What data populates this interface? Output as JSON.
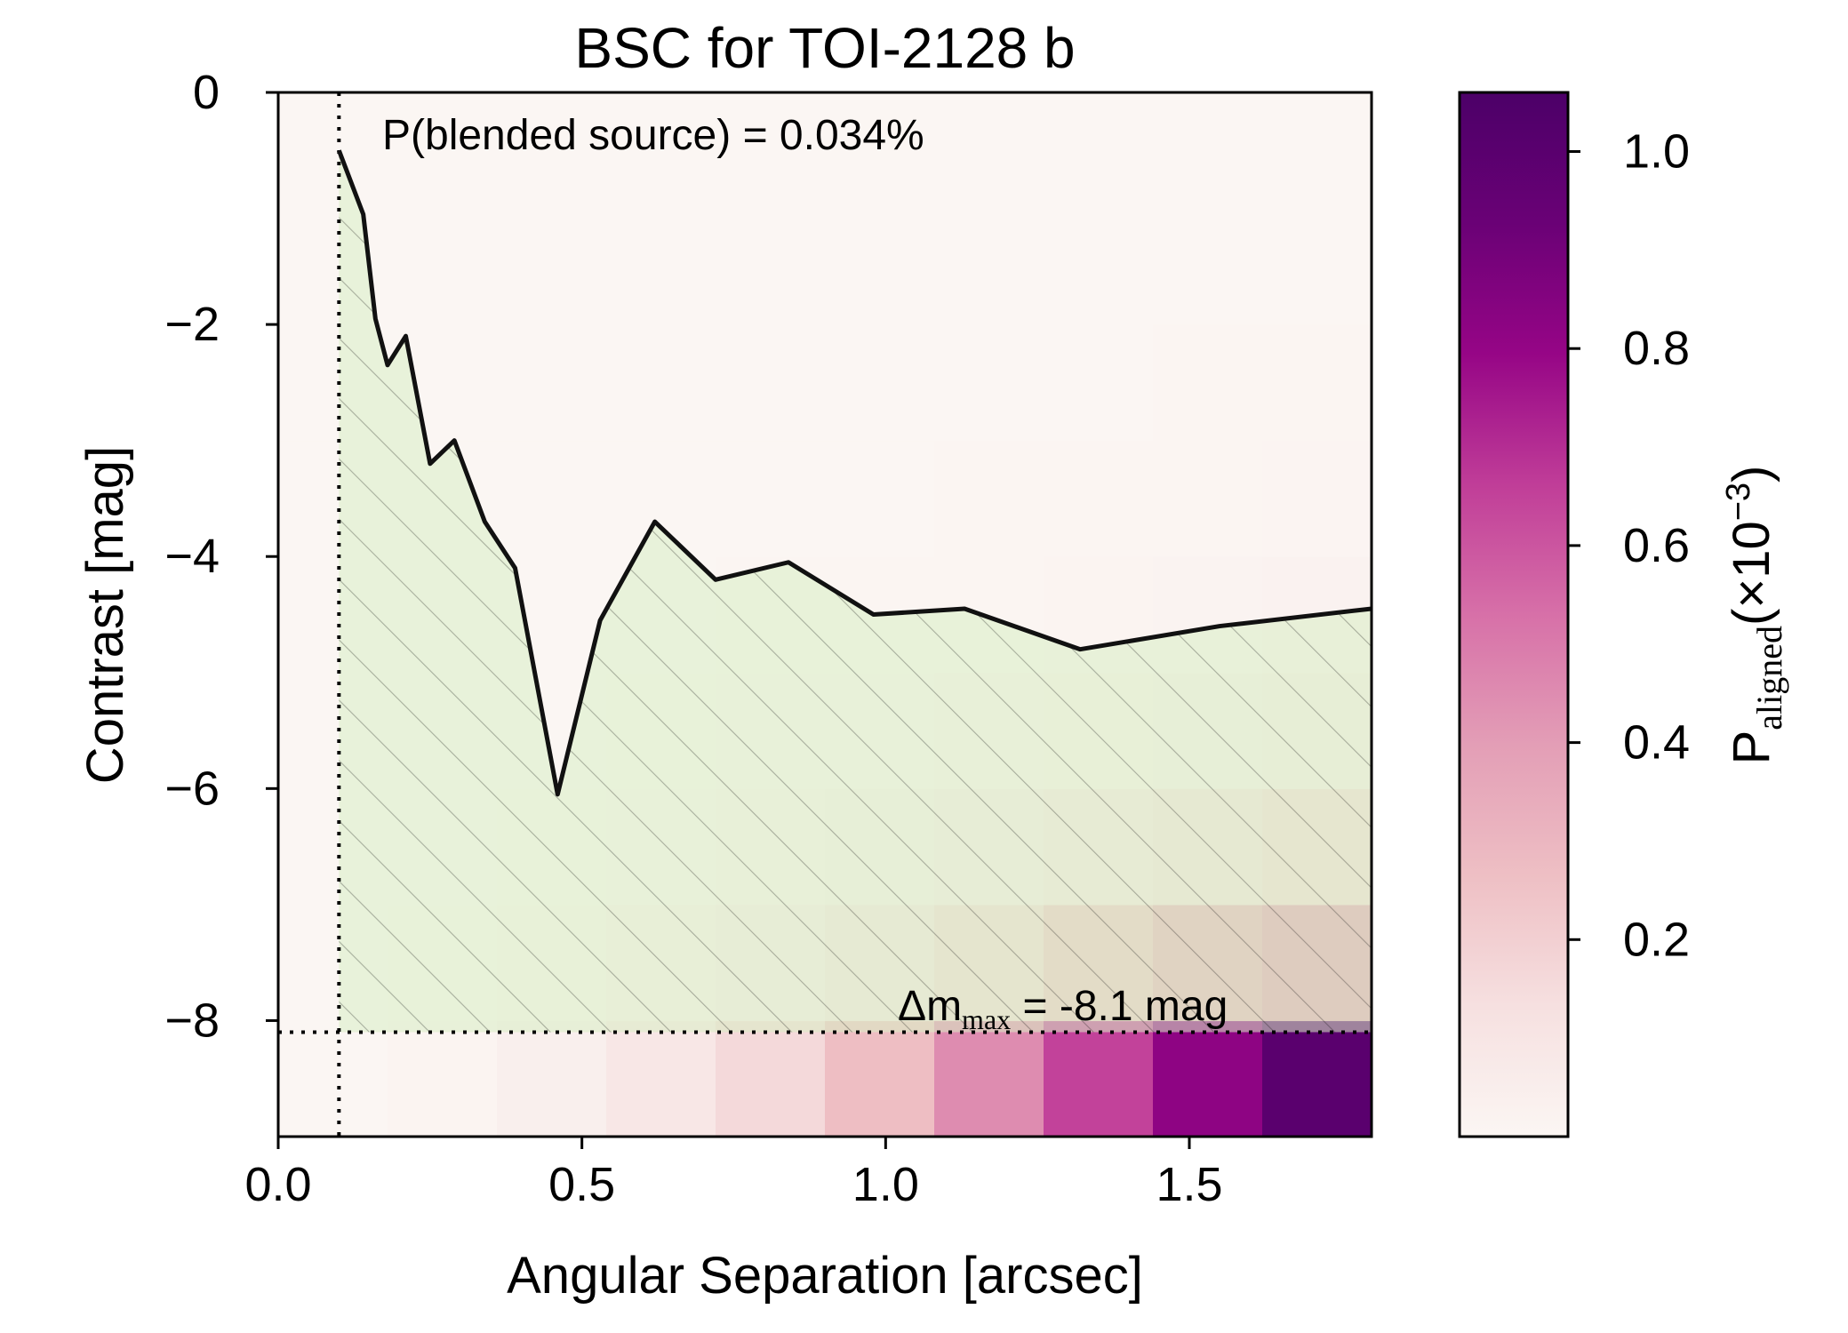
{
  "chart_data": {
    "type": "heatmap",
    "title": "BSC for TOI-2128 b",
    "xlabel": "Angular Separation [arcsec]",
    "ylabel": "Contrast [mag]",
    "xlim": [
      0.0,
      1.8
    ],
    "ylim": [
      -9.0,
      0.0
    ],
    "xticks": [
      0.0,
      0.5,
      1.0,
      1.5
    ],
    "xtick_labels": [
      "0.0",
      "0.5",
      "1.0",
      "1.5"
    ],
    "yticks": [
      0,
      -2,
      -4,
      -6,
      -8
    ],
    "ytick_labels": [
      "0",
      "−2",
      "−4",
      "−6",
      "−8"
    ],
    "annotation_probability": "P(blended source) = 0.034%",
    "annotation_dm_prefix": "Δm",
    "annotation_dm_sub": "max",
    "annotation_dm_value": " =  -8.1 mag",
    "dm_max": -8.1,
    "min_separation": 0.1,
    "contrast_curve": {
      "x": [
        0.1,
        0.14,
        0.16,
        0.18,
        0.21,
        0.25,
        0.29,
        0.34,
        0.39,
        0.46,
        0.53,
        0.62,
        0.72,
        0.84,
        0.98,
        1.13,
        1.32,
        1.55,
        1.8
      ],
      "y": [
        -0.5,
        -1.05,
        -1.95,
        -2.35,
        -2.1,
        -3.2,
        -3.0,
        -3.7,
        -4.1,
        -6.05,
        -4.55,
        -3.7,
        -4.2,
        -4.05,
        -4.5,
        -4.45,
        -4.8,
        -4.6,
        -4.45
      ]
    },
    "heatmap": {
      "x_edges": [
        0.0,
        0.18,
        0.36,
        0.54,
        0.72,
        0.9,
        1.08,
        1.26,
        1.44,
        1.62,
        1.8
      ],
      "y_edges": [
        -9,
        -8,
        -7,
        -6,
        -5,
        -4,
        -3,
        -2,
        -1,
        0
      ],
      "values": [
        [
          0.003,
          0.012,
          0.045,
          0.09,
          0.16,
          0.27,
          0.45,
          0.65,
          0.82,
          1.0
        ],
        [
          0.002,
          0.006,
          0.018,
          0.035,
          0.06,
          0.1,
          0.16,
          0.24,
          0.32,
          0.38
        ],
        [
          0.001,
          0.003,
          0.008,
          0.015,
          0.025,
          0.04,
          0.06,
          0.09,
          0.12,
          0.15
        ],
        [
          0.0,
          0.001,
          0.003,
          0.006,
          0.01,
          0.015,
          0.022,
          0.032,
          0.042,
          0.055
        ],
        [
          0.0,
          0.0,
          0.001,
          0.002,
          0.004,
          0.006,
          0.009,
          0.013,
          0.017,
          0.022
        ],
        [
          0.0,
          0.0,
          0.0,
          0.001,
          0.002,
          0.003,
          0.004,
          0.006,
          0.008,
          0.01
        ],
        [
          0.0,
          0.0,
          0.0,
          0.0,
          0.001,
          0.001,
          0.002,
          0.003,
          0.004,
          0.005
        ],
        [
          0.0,
          0.0,
          0.0,
          0.0,
          0.0,
          0.001,
          0.001,
          0.001,
          0.002,
          0.002
        ],
        [
          0.0,
          0.0,
          0.0,
          0.0,
          0.0,
          0.0,
          0.0,
          0.001,
          0.001,
          0.001
        ]
      ]
    },
    "colorbar": {
      "label_main": "P",
      "label_sub": "aligned",
      "label_unit": "(×10",
      "label_exp": "−3",
      "label_close": ")",
      "range": [
        0.0,
        1.06
      ],
      "ticks": [
        0.2,
        0.4,
        0.6,
        0.8,
        1.0
      ],
      "tick_labels": [
        "0.2",
        "0.4",
        "0.6",
        "0.8",
        "1.0"
      ],
      "colormap": [
        "#fbf6f3",
        "#f6e0e0",
        "#eebfc4",
        "#e39eb6",
        "#d770a8",
        "#c03d98",
        "#960586",
        "#6a0176",
        "#4c0068"
      ]
    },
    "colors": {
      "fill": "#d8efc4",
      "curve": "#111111",
      "hatch": "#000000"
    },
    "grid": false
  }
}
